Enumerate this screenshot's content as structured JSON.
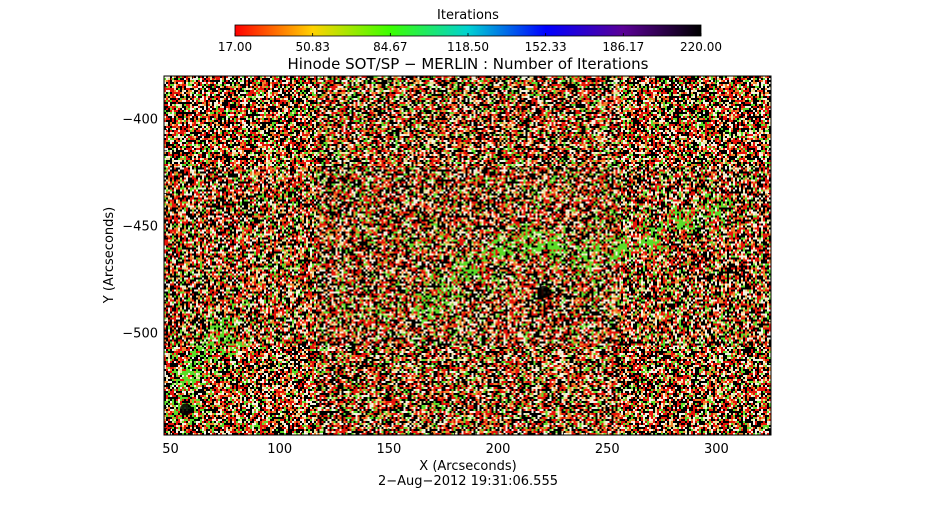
{
  "chart_data": {
    "type": "heatmap",
    "title": "Hinode SOT/SP − MERLIN : Number of Iterations",
    "xlabel": "X (Arcseconds)",
    "ylabel": "Y (Arcseconds)",
    "xlim": [
      47,
      325
    ],
    "ylim": [
      -548,
      -380
    ],
    "x_ticks": [
      50,
      100,
      150,
      200,
      250,
      300
    ],
    "y_ticks": [
      -400,
      -450,
      -500
    ],
    "x_tick_labels": [
      "50",
      "100",
      "150",
      "200",
      "250",
      "300"
    ],
    "y_tick_labels": [
      "−400",
      "−450",
      "−500"
    ],
    "colorbar": {
      "label": "Iterations",
      "range": [
        17.0,
        220.0
      ],
      "tick_labels": [
        "17.00",
        "50.83",
        "84.67",
        "118.50",
        "152.33",
        "186.17",
        "220.00"
      ],
      "colors": [
        "#ff0000",
        "#ffd200",
        "#3cff00",
        "#00d2d2",
        "#0000ff",
        "#5a0096",
        "#000000"
      ]
    },
    "value_mix": {
      "black": 0.34,
      "red": 0.22,
      "white": 0.16,
      "orange": 0.1,
      "yellow": 0.08,
      "green": 0.1
    },
    "features": [
      {
        "name": "green-arc",
        "points": [
          [
            168,
            -488
          ],
          [
            175,
            -480
          ],
          [
            185,
            -470
          ],
          [
            200,
            -460
          ],
          [
            212,
            -457
          ],
          [
            225,
            -460
          ],
          [
            240,
            -465
          ],
          [
            255,
            -460
          ],
          [
            270,
            -455
          ],
          [
            285,
            -447
          ],
          [
            300,
            -440
          ]
        ]
      },
      {
        "name": "green-patch-lower-left",
        "points": [
          [
            55,
            -535
          ],
          [
            58,
            -520
          ],
          [
            65,
            -508
          ],
          [
            72,
            -498
          ],
          [
            78,
            -505
          ]
        ]
      },
      {
        "name": "dark-spot-1",
        "x": 221,
        "y": -481
      },
      {
        "name": "dark-spot-2",
        "x": 57,
        "y": -536
      }
    ],
    "timestamp": "2−Aug−2012 19:31:06.555"
  }
}
